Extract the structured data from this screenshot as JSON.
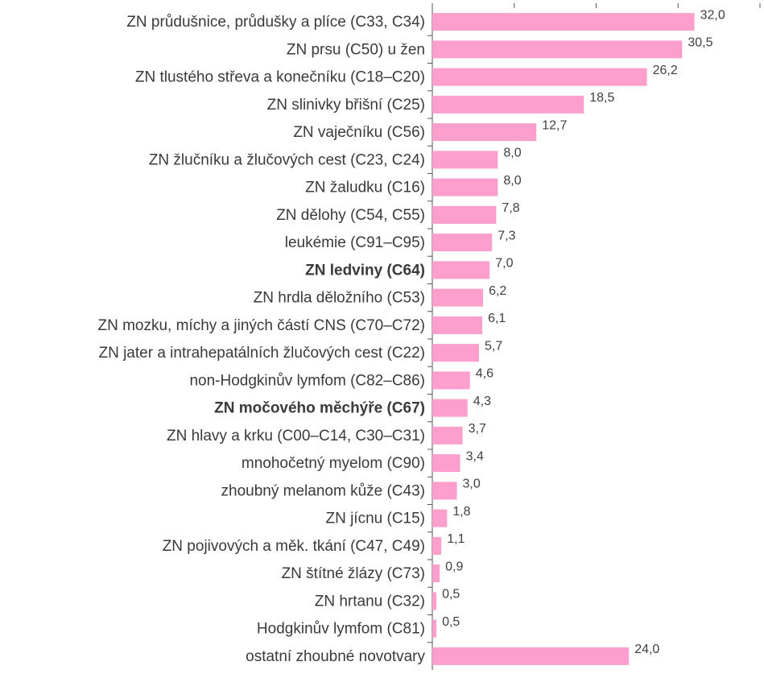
{
  "chart_data": {
    "type": "hbar",
    "categories": [
      "ZN průdušnice, průdušky a plíce (C33, C34)",
      "ZN prsu (C50) u žen",
      "ZN tlustého střeva a konečníku (C18–C20)",
      "ZN slinivky břišní (C25)",
      "ZN vaječníku (C56)",
      "ZN žlučníku a žlučových cest (C23, C24)",
      "ZN žaludku (C16)",
      "ZN dělohy (C54, C55)",
      "leukémie (C91–C95)",
      "ZN ledviny (C64)",
      "ZN hrdla děložního (C53)",
      "ZN mozku, míchy a jiných částí CNS (C70–C72)",
      "ZN jater a intrahepatálních žlučových cest (C22)",
      "non-Hodgkinův lymfom (C82–C86)",
      "ZN močového měchýře (C67)",
      "ZN hlavy a krku (C00–C14, C30–C31)",
      "mnohočetný myelom (C90)",
      "zhoubný melanom kůže (C43)",
      "ZN jícnu (C15)",
      "ZN pojivových a měk. tkání (C47, C49)",
      "ZN štítné žlázy (C73)",
      "ZN hrtanu (C32)",
      "Hodgkinův lymfom (C81)",
      "ostatní zhoubné novotvary"
    ],
    "values": [
      32.0,
      30.5,
      26.2,
      18.5,
      12.7,
      8.0,
      8.0,
      7.8,
      7.3,
      7.0,
      6.2,
      6.1,
      5.7,
      4.6,
      4.3,
      3.7,
      3.4,
      3.0,
      1.8,
      1.1,
      0.9,
      0.5,
      0.5,
      24.0
    ],
    "value_labels": [
      "32,0",
      "30,5",
      "26,2",
      "18,5",
      "12,7",
      "8,0",
      "8,0",
      "7,8",
      "7,3",
      "7,0",
      "6,2",
      "6,1",
      "5,7",
      "4,6",
      "4,3",
      "3,7",
      "3,4",
      "3,0",
      "1,8",
      "1,1",
      "0,9",
      "0,5",
      "0,5",
      "24,0"
    ],
    "bold_indices": [
      9,
      14
    ],
    "color": "#fc9fcc",
    "xlim": [
      0,
      40
    ],
    "xticks": [
      0,
      10,
      20,
      30,
      40
    ]
  }
}
